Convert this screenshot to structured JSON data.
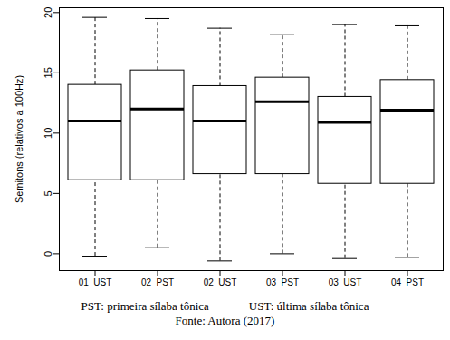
{
  "chart_data": {
    "type": "box",
    "y_label": "Semitons (relativos a 100Hz)",
    "categories": [
      "01_UST",
      "02_PST",
      "02_UST",
      "03_PST",
      "03_UST",
      "04_PST"
    ],
    "min": [
      -0.2,
      0.5,
      -0.6,
      0.0,
      -0.4,
      -0.3
    ],
    "q1": [
      6.1,
      6.1,
      6.6,
      6.6,
      5.8,
      5.8
    ],
    "median": [
      11.0,
      12.0,
      11.0,
      12.6,
      10.9,
      11.9
    ],
    "q3": [
      14.0,
      15.2,
      13.9,
      14.6,
      13.0,
      14.4
    ],
    "max": [
      19.6,
      19.5,
      18.7,
      18.2,
      19.0,
      18.9
    ],
    "ylim": [
      -1.4,
      20.4
    ],
    "yticks": [
      0,
      5,
      10,
      15,
      20
    ],
    "grid": false,
    "color": "#000000",
    "annotations": [
      "PST: primeira sílaba tônica",
      "UST: última sílaba tônica",
      "Fonte: Autora (2017)"
    ]
  }
}
